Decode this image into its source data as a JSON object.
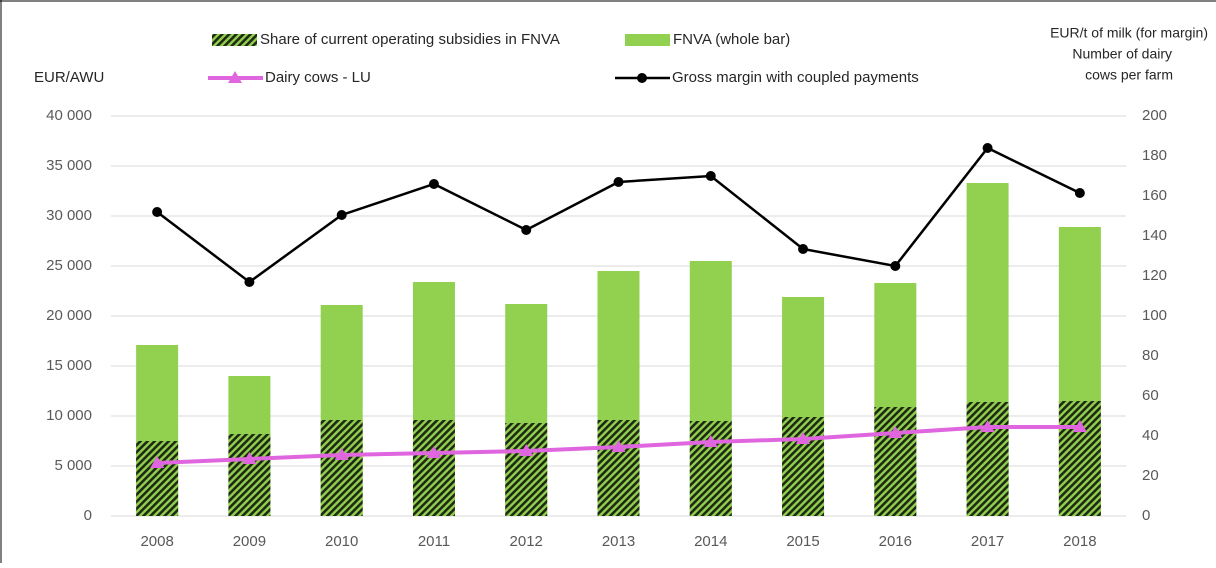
{
  "chart_data": {
    "type": "bar",
    "y_label": "EUR/AWU",
    "y2_label": [
      "EUR/t of milk (for margin)",
      "Number of dairy",
      "cows per farm"
    ],
    "categories": [
      "2008",
      "2009",
      "2010",
      "2011",
      "2012",
      "2013",
      "2014",
      "2015",
      "2016",
      "2017",
      "2018"
    ],
    "series": [
      {
        "name": "FNVA (whole bar)",
        "type": "bar",
        "color": "#92d050",
        "values": [
          17100,
          14000,
          21100,
          23400,
          21200,
          24500,
          25500,
          21900,
          23300,
          33300,
          28900
        ]
      },
      {
        "name": "Share of current operating subsidies in FNVA",
        "type": "bar",
        "hatch": true,
        "color": "#92d050",
        "values": [
          7500,
          8200,
          9600,
          9600,
          9300,
          9600,
          9500,
          9900,
          10900,
          11400,
          11500
        ]
      },
      {
        "name": "Dairy cows - LU",
        "type": "line",
        "marker": "triangle",
        "axis": "y2",
        "color": "#e066e0",
        "values": [
          26.5,
          28.5,
          30.5,
          31.5,
          32.5,
          34.5,
          37,
          38.5,
          41.5,
          44.5,
          44.5
        ]
      },
      {
        "name": "Gross margin with coupled payments",
        "type": "line",
        "marker": "circle",
        "axis": "y2",
        "color": "#000000",
        "values": [
          152,
          117,
          150.5,
          166,
          143,
          167,
          170,
          133.5,
          125,
          184,
          161.5
        ]
      }
    ],
    "ylim": [
      0,
      40000
    ],
    "yticks": [
      0,
      {
        "value": 5000,
        "label": "5 000"
      },
      {
        "value": 10000,
        "label": "10 000"
      },
      {
        "value": 15000,
        "label": "15 000"
      },
      {
        "value": 20000,
        "label": "20 000"
      },
      {
        "value": 25000,
        "label": "25 000"
      },
      {
        "value": 30000,
        "label": "30 000"
      },
      {
        "value": 35000,
        "label": "35 000"
      },
      {
        "value": 40000,
        "label": "40 000"
      }
    ],
    "y2lim": [
      0,
      200
    ],
    "y2ticks": [
      0,
      20,
      40,
      60,
      80,
      100,
      120,
      140,
      160,
      180,
      200
    ],
    "grid": true
  }
}
